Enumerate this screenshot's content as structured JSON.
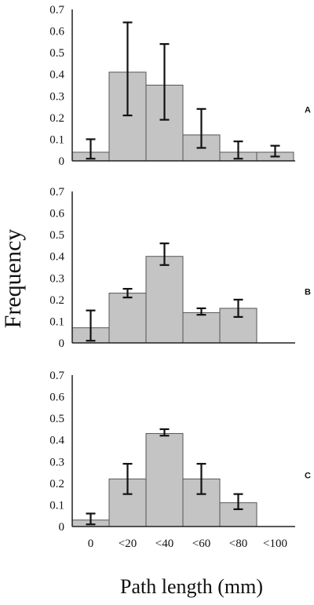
{
  "chart_data": {
    "type": "bar",
    "ylabel": "Frequency",
    "xlabel": "Path length (mm)",
    "categories": [
      "0",
      "<20",
      "<40",
      "<60",
      "<80",
      "<100"
    ],
    "ylim": [
      0,
      0.7
    ],
    "yticks": [
      "0",
      "0.1",
      "0.2",
      "0.3",
      "0.4",
      "0.5",
      "0.6",
      "0.7"
    ],
    "panels": [
      {
        "label": "A",
        "values": [
          0.04,
          0.41,
          0.35,
          0.12,
          0.04,
          0.04
        ],
        "error_low": [
          0.01,
          0.21,
          0.19,
          0.06,
          0.01,
          0.02
        ],
        "error_high": [
          0.1,
          0.64,
          0.54,
          0.24,
          0.09,
          0.07
        ]
      },
      {
        "label": "B",
        "values": [
          0.07,
          0.23,
          0.4,
          0.14,
          0.16,
          0.0
        ],
        "error_low": [
          0.01,
          0.21,
          0.36,
          0.13,
          0.12,
          null
        ],
        "error_high": [
          0.15,
          0.25,
          0.46,
          0.16,
          0.2,
          null
        ]
      },
      {
        "label": "C",
        "values": [
          0.03,
          0.22,
          0.43,
          0.22,
          0.11,
          0.0
        ],
        "error_low": [
          0.01,
          0.15,
          0.42,
          0.15,
          0.08,
          null
        ],
        "error_high": [
          0.06,
          0.29,
          0.45,
          0.29,
          0.15,
          null
        ]
      }
    ]
  }
}
